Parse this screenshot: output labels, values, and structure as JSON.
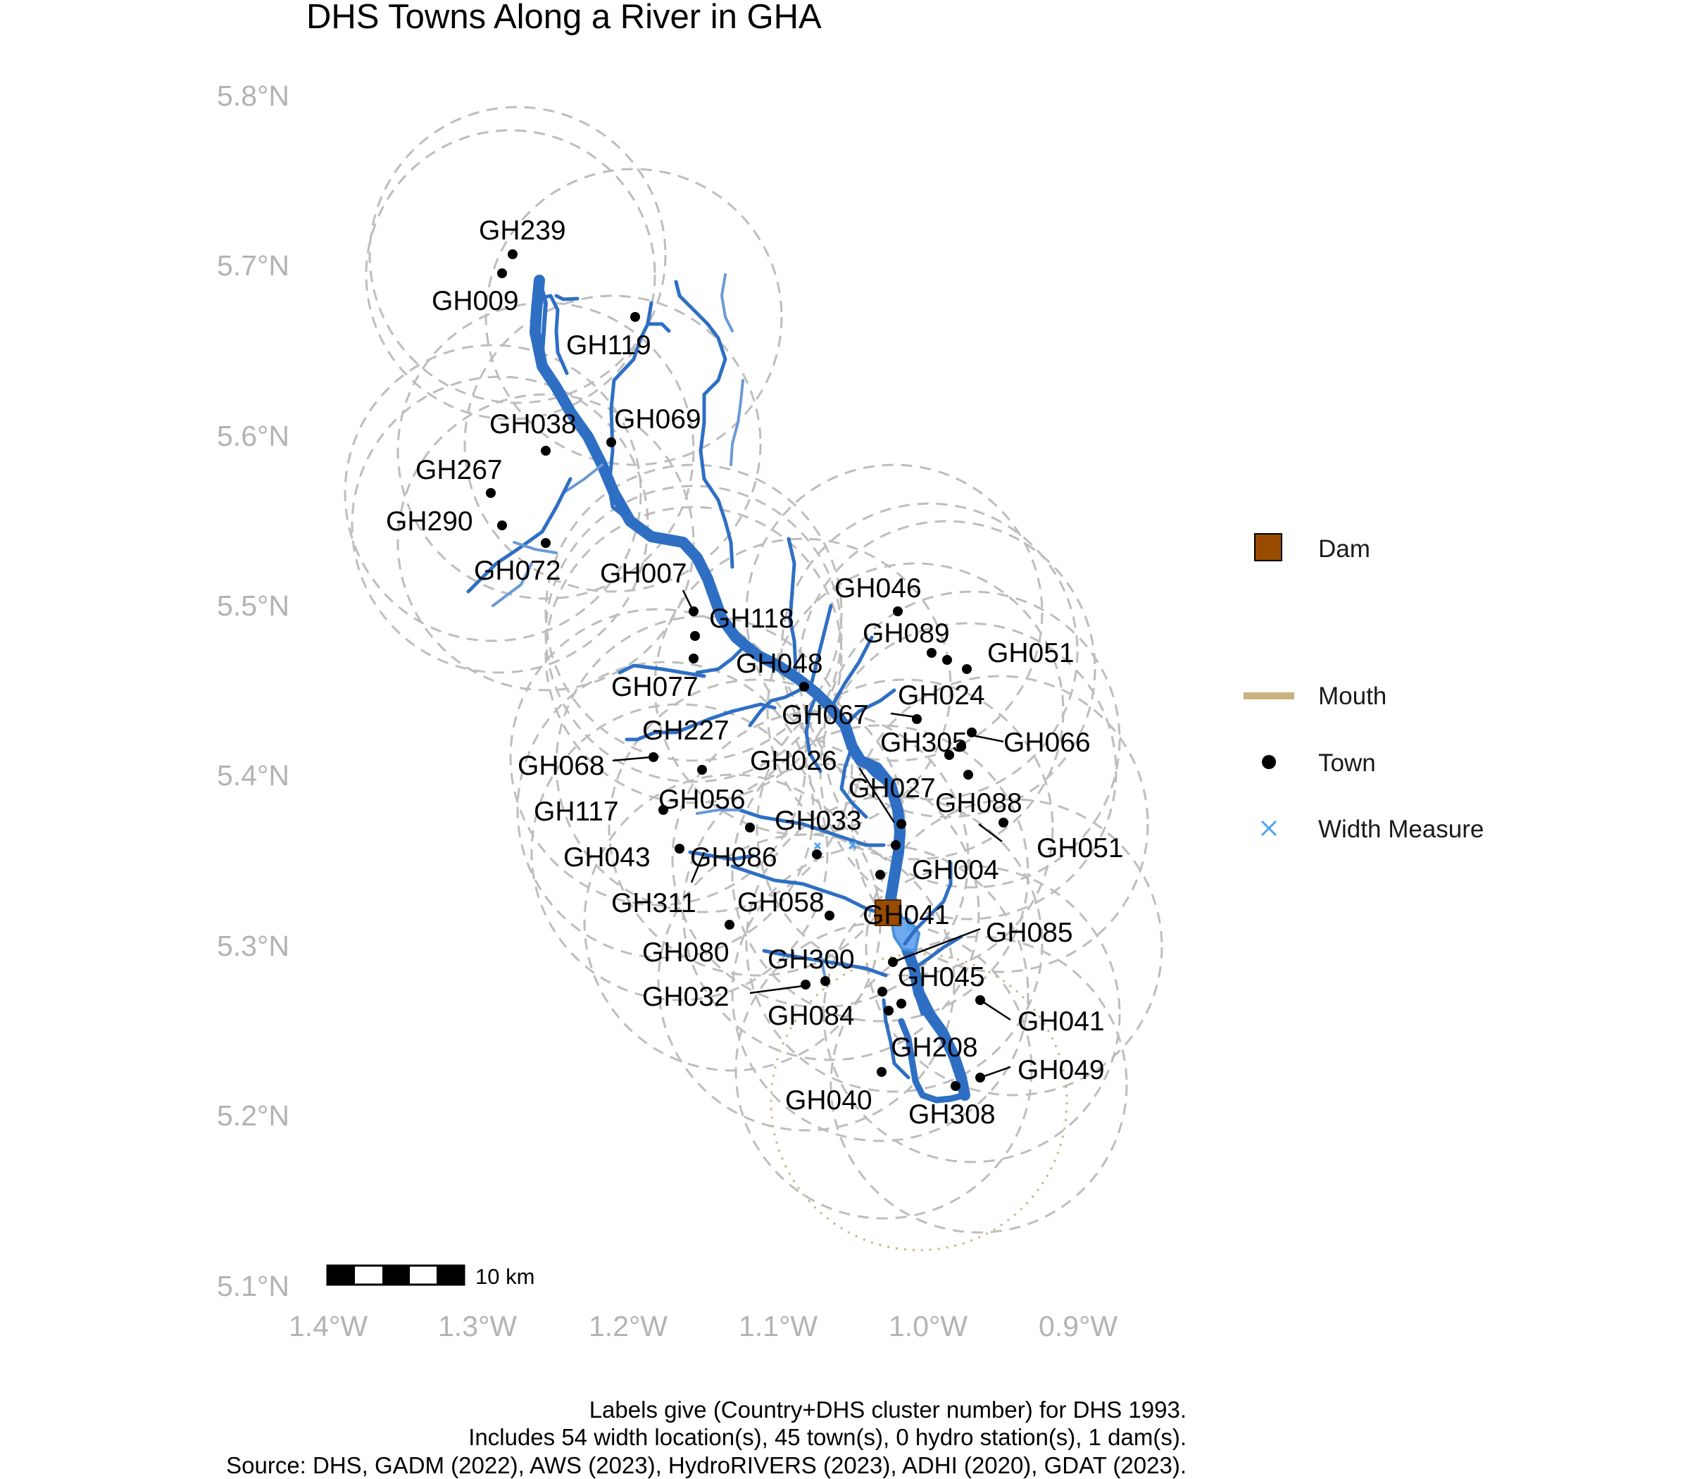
{
  "title": "DHS Towns Along a River in GHA",
  "axes": {
    "lat_labels": [
      "5.8°N",
      "5.7°N",
      "5.6°N",
      "5.5°N",
      "5.4°N",
      "5.3°N",
      "5.2°N",
      "5.1°N"
    ],
    "lon_labels": [
      "1.4°W",
      "1.3°W",
      "1.2°W",
      "1.1°W",
      "1.0°W",
      "0.9°W"
    ]
  },
  "towns": [
    {
      "label": "GH239"
    },
    {
      "label": "GH009"
    },
    {
      "label": "GH119"
    },
    {
      "label": "GH038"
    },
    {
      "label": "GH069"
    },
    {
      "label": "GH267"
    },
    {
      "label": "GH290"
    },
    {
      "label": "GH072"
    },
    {
      "label": "GH007"
    },
    {
      "label": "GH046"
    },
    {
      "label": "GH118"
    },
    {
      "label": "GH089"
    },
    {
      "label": "GH051"
    },
    {
      "label": "GH048"
    },
    {
      "label": "GH077"
    },
    {
      "label": "GH024"
    },
    {
      "label": "GH067"
    },
    {
      "label": "GH227"
    },
    {
      "label": "GH305"
    },
    {
      "label": "GH066"
    },
    {
      "label": "GH068"
    },
    {
      "label": "GH026"
    },
    {
      "label": "GH027"
    },
    {
      "label": "GH088"
    },
    {
      "label": "GH117"
    },
    {
      "label": "GH056"
    },
    {
      "label": "GH033"
    },
    {
      "label": "GH051"
    },
    {
      "label": "GH043"
    },
    {
      "label": "GH086"
    },
    {
      "label": "GH004"
    },
    {
      "label": "GH311"
    },
    {
      "label": "GH058"
    },
    {
      "label": "GH041"
    },
    {
      "label": "GH085"
    },
    {
      "label": "GH080"
    },
    {
      "label": "GH300"
    },
    {
      "label": "GH045"
    },
    {
      "label": "GH032"
    },
    {
      "label": "GH084"
    },
    {
      "label": "GH041"
    },
    {
      "label": "GH208"
    },
    {
      "label": "GH049"
    },
    {
      "label": "GH040"
    },
    {
      "label": "GH308"
    }
  ],
  "legend": {
    "items": [
      {
        "label": "Dam",
        "color": "#994c00"
      },
      {
        "label": "Mouth",
        "color": "#c8b27e"
      },
      {
        "label": "Town",
        "color": "#000000"
      },
      {
        "label": "Width Measure",
        "color": "#4da3ee"
      }
    ]
  },
  "scale_bar": {
    "label": "10 km"
  },
  "caption": [
    "Labels give (Country+DHS cluster number) for DHS 1993.",
    "Includes 54 width location(s), 45 town(s), 0 hydro station(s), 1 dam(s).",
    "Source: DHS, GADM (2022), AWS (2023), HydroRIVERS (2023), ADHI (2020), GDAT (2023)."
  ],
  "colors": {
    "river": "#2e6fc4",
    "river_light": "#6a9ad6",
    "dam": "#994c00",
    "buffer": "#bdbdbd",
    "axis_text": "#b3b3b3"
  }
}
